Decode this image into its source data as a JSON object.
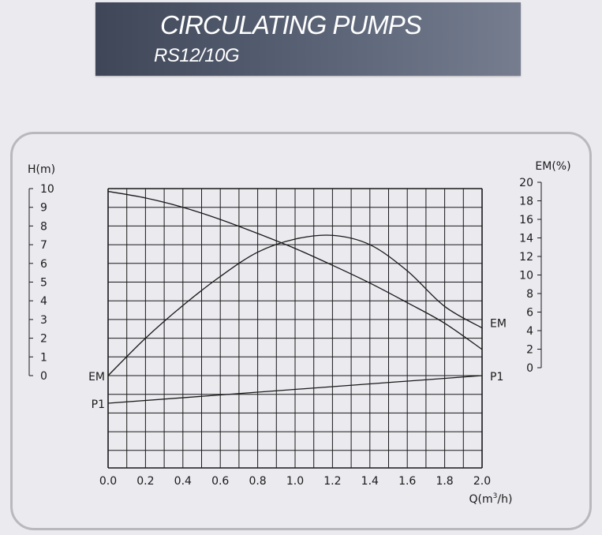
{
  "header": {
    "title": "CIRCULATING PUMPS",
    "model": "RS12/10G"
  },
  "chart_data": {
    "type": "line",
    "xlabel_base": "Q(m",
    "xlabel_sup": "3",
    "xlabel_tail": "/h)",
    "ylabel_left": "H(m)",
    "ylabel_right": "EM(%)",
    "xlim": [
      0,
      2.0
    ],
    "ylim_left": [
      0,
      10
    ],
    "ylim_right": [
      0,
      20
    ],
    "x_ticks": [
      "0.0",
      "0.2",
      "0.4",
      "0.6",
      "0.8",
      "1.0",
      "1.2",
      "1.4",
      "1.6",
      "1.8",
      "2.0"
    ],
    "left_ticks": [
      "0",
      "1",
      "2",
      "3",
      "4",
      "5",
      "6",
      "7",
      "8",
      "9",
      "10"
    ],
    "right_ticks": [
      "0",
      "2",
      "4",
      "6",
      "8",
      "10",
      "12",
      "14",
      "16",
      "18",
      "20"
    ],
    "grid": true,
    "line_color": "#1a1a1a",
    "series": [
      {
        "label_start": "",
        "label_end": "",
        "axis": "H",
        "x": [
          0.0,
          0.2,
          0.4,
          0.6,
          0.8,
          1.0,
          1.2,
          1.4,
          1.6,
          1.8,
          2.0
        ],
        "values": [
          9.85,
          9.5,
          9.0,
          8.35,
          7.6,
          6.8,
          5.9,
          4.95,
          3.9,
          2.8,
          1.4
        ]
      },
      {
        "label_start": "EM",
        "label_end": "EM",
        "axis": "EM",
        "x": [
          0.0,
          0.2,
          0.4,
          0.6,
          0.8,
          1.0,
          1.2,
          1.4,
          1.6,
          1.8,
          2.0
        ],
        "values": [
          0.0,
          4.0,
          7.5,
          10.6,
          13.2,
          14.6,
          15.0,
          14.0,
          11.2,
          7.4,
          5.1
        ]
      },
      {
        "label_start": "P1",
        "label_end": "P1",
        "axis": "P1",
        "x": [
          0.0,
          2.0
        ],
        "values": [
          -1.5,
          0.0
        ]
      }
    ]
  }
}
